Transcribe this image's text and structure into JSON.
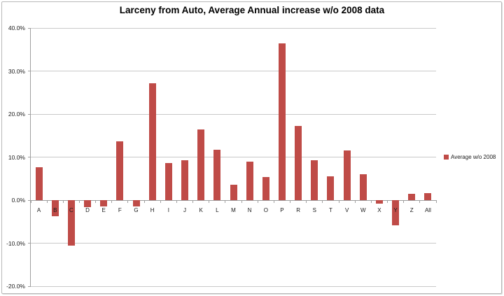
{
  "window": {
    "background": "#ffffff",
    "border_color": "#b9b9b9"
  },
  "legend": {
    "label": "Average w/o 2008"
  },
  "chart_data": {
    "type": "bar",
    "title": "Larceny from Auto, Average Annual increase w/o 2008 data",
    "series_name": "Average w/o 2008",
    "categories": [
      "A",
      "B",
      "C",
      "D",
      "E",
      "F",
      "G",
      "H",
      "I",
      "J",
      "K",
      "L",
      "M",
      "N",
      "O",
      "P",
      "R",
      "S",
      "T",
      "V",
      "W",
      "X",
      "Y",
      "Z",
      "All"
    ],
    "values": [
      7.6,
      -3.7,
      -10.6,
      -1.6,
      -1.4,
      13.6,
      -1.4,
      27.2,
      8.6,
      9.2,
      16.4,
      11.7,
      3.5,
      9.0,
      5.3,
      36.5,
      17.3,
      9.2,
      5.5,
      11.5,
      6.0,
      -0.8,
      -5.9,
      1.5,
      1.6
    ],
    "xlabel": "",
    "ylabel": "",
    "ylim": [
      -20,
      40
    ],
    "ytick_values": [
      40,
      30,
      20,
      10,
      0,
      -10,
      -20
    ],
    "ytick_labels": [
      "40.0%",
      "30.0%",
      "20.0%",
      "10.0%",
      "0.0%",
      "-10.0%",
      "-20.0%"
    ],
    "grid": true,
    "legend_position": "right",
    "bar_color": "#BF4B47",
    "gridline_color": "#c9c9c9",
    "axis_line_color": "#9f9f9f",
    "label_color": "#1a1a1a"
  }
}
